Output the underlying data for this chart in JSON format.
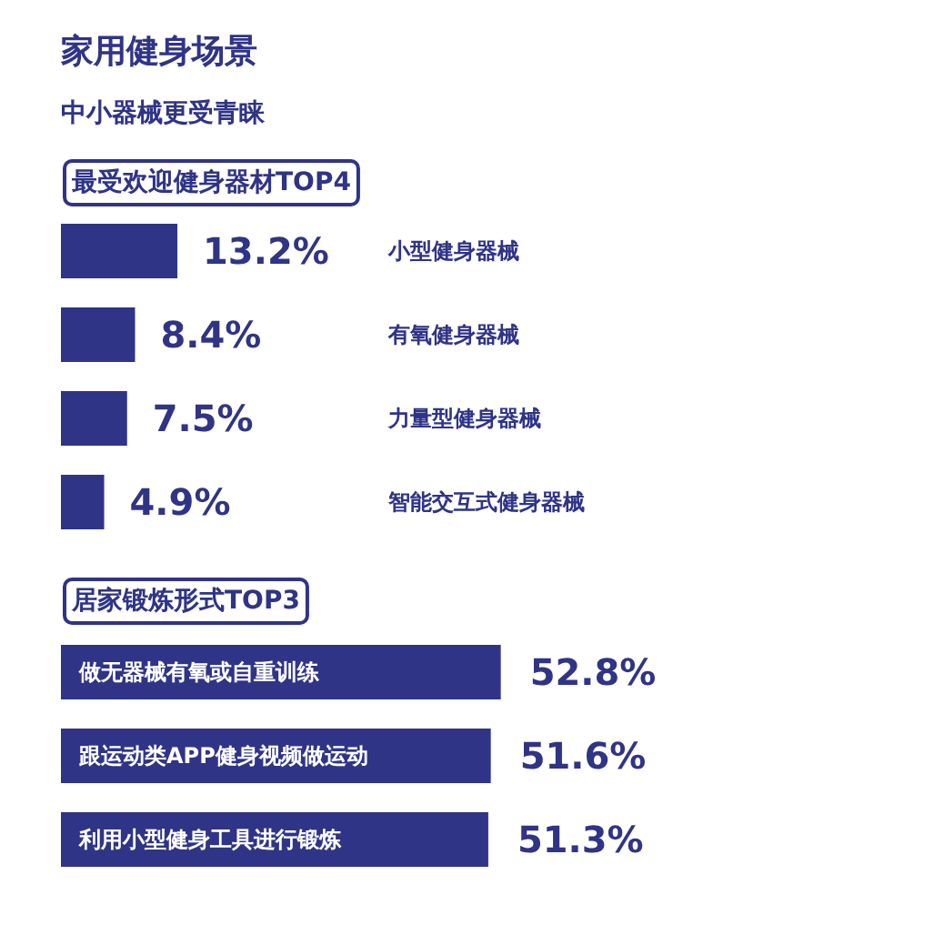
{
  "chart_data": [
    {
      "type": "other",
      "title": "家用健身场景",
      "subtitle": "中小器械更受青睐"
    },
    {
      "type": "bar",
      "orientation": "horizontal",
      "title": "最受欢迎健身器材TOP4",
      "categories": [
        "小型健身器械",
        "有氧健身器械",
        "力量型健身器械",
        "智能交互式健身器械"
      ],
      "values": [
        13.2,
        8.4,
        7.5,
        4.9
      ],
      "value_labels": [
        "13.2%",
        "8.4%",
        "7.5%",
        "4.9%"
      ],
      "color": "#2f3486",
      "tick_labels": false,
      "grid": false
    },
    {
      "type": "bar",
      "orientation": "horizontal",
      "title": "居家锻炼形式TOP3",
      "categories": [
        "做无器械有氧或自重训练",
        "跟运动类APP健身视频做运动",
        "利用小型健身工具进行锻炼"
      ],
      "values": [
        52.8,
        51.6,
        51.3
      ],
      "value_labels": [
        "52.8%",
        "51.6%",
        "51.3%"
      ],
      "color": "#2f3486",
      "tick_labels": false,
      "grid": false
    }
  ]
}
